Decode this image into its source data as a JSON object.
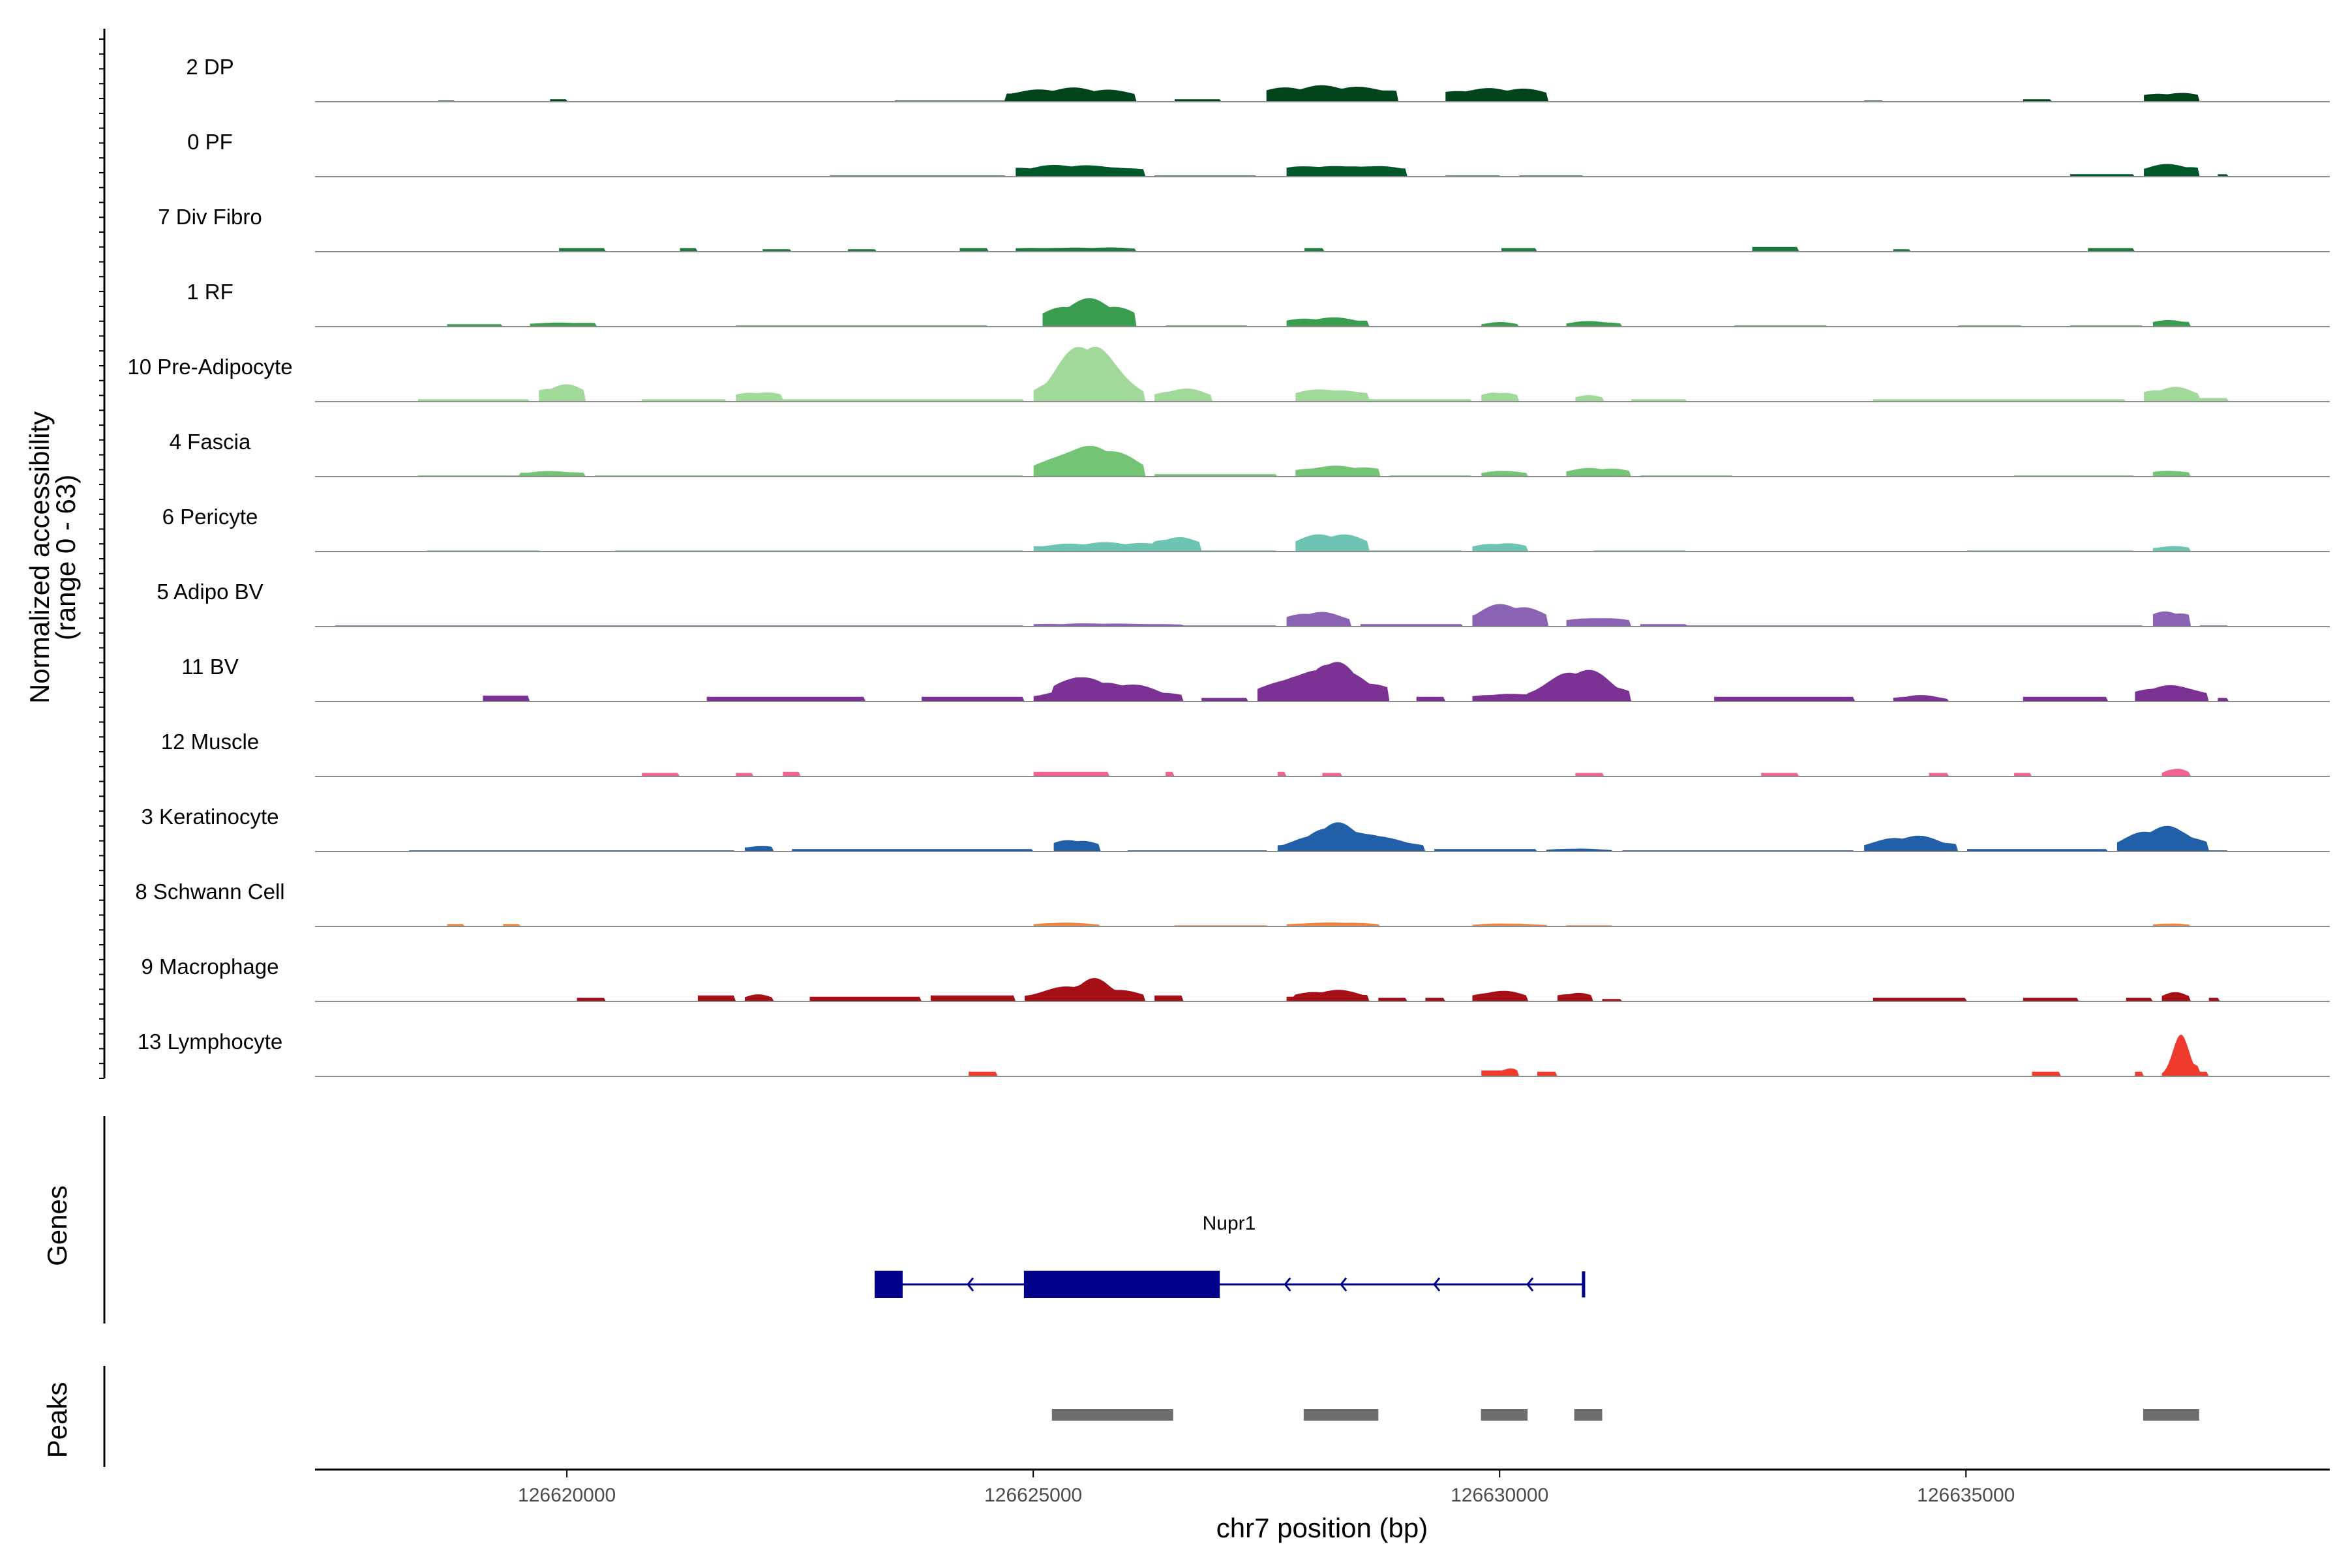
{
  "chart_data": {
    "type": "area",
    "chromosome": "chr7",
    "region": [
      126617300,
      126638900
    ],
    "xlabel": "chr7 position (bp)",
    "x_ticks": [
      126620000,
      126625000,
      126630000,
      126635000
    ],
    "x_tick_labels": [
      "126620000",
      "126625000",
      "126630000",
      "126635000"
    ],
    "ylabel": "Normalized accessibility",
    "ylabel_line2": "(range 0 - 63)",
    "y_range": [
      0,
      63
    ],
    "series": [
      {
        "name": "2 DP",
        "color": "#00441b",
        "peaks": [
          [
            126624700,
            126626100,
            12,
            800
          ],
          [
            126627500,
            126628900,
            14,
            1000
          ],
          [
            126629400,
            126630500,
            12,
            800
          ],
          [
            126636900,
            126637500,
            8,
            400
          ]
        ],
        "noise": [
          [
            126618600,
            126618800,
            1
          ],
          [
            126619800,
            126620000,
            2
          ],
          [
            126623500,
            126624700,
            1
          ],
          [
            126626500,
            126627000,
            2
          ],
          [
            126633900,
            126634100,
            1
          ],
          [
            126635600,
            126635900,
            2
          ]
        ]
      },
      {
        "name": "0 PF",
        "color": "#00592a",
        "peaks": [
          [
            126624800,
            126626200,
            11,
            800
          ],
          [
            126627700,
            126629000,
            11,
            900
          ],
          [
            126636900,
            126637500,
            11,
            400
          ]
        ],
        "noise": [
          [
            126622800,
            126624700,
            1
          ],
          [
            126626300,
            126627400,
            1
          ],
          [
            126629400,
            126630000,
            1
          ],
          [
            126630200,
            126630900,
            1
          ],
          [
            126636100,
            126636800,
            2
          ],
          [
            126637700,
            126637800,
            2
          ]
        ]
      },
      {
        "name": "7 Div Fibro",
        "color": "#1d7b3e",
        "peaks": [
          [
            126624800,
            126626100,
            4,
            1100
          ]
        ],
        "noise": [
          [
            126619900,
            126620400,
            3
          ],
          [
            126621200,
            126621400,
            3
          ],
          [
            126622100,
            126622400,
            2
          ],
          [
            126623000,
            126623300,
            2
          ],
          [
            126624200,
            126624500,
            3
          ],
          [
            126627900,
            126628100,
            3
          ],
          [
            126630000,
            126630400,
            3
          ],
          [
            126632700,
            126633200,
            4
          ],
          [
            126634200,
            126634400,
            2
          ],
          [
            126636300,
            126636800,
            3
          ]
        ]
      },
      {
        "name": "1 RF",
        "color": "#3a9c4e",
        "peaks": [
          [
            126625100,
            126626100,
            24,
            420
          ],
          [
            126627700,
            126628600,
            8,
            500
          ],
          [
            126629800,
            126630200,
            4,
            200
          ],
          [
            126630700,
            126631300,
            5,
            300
          ],
          [
            126637000,
            126637400,
            6,
            250
          ],
          [
            126619600,
            126620300,
            4,
            500
          ]
        ],
        "noise": [
          [
            126618700,
            126619300,
            2
          ],
          [
            126621800,
            126624500,
            1
          ],
          [
            126626400,
            126627300,
            1
          ],
          [
            126632500,
            126633500,
            1
          ],
          [
            126634900,
            126635600,
            1
          ],
          [
            126636100,
            126636900,
            1
          ]
        ]
      },
      {
        "name": "10 Pre-Adipocyte",
        "color": "#a1d99b",
        "peaks": [
          [
            126625000,
            126626200,
            56,
            320
          ],
          [
            126626300,
            126626900,
            12,
            300
          ],
          [
            126627800,
            126628600,
            12,
            500
          ],
          [
            126629800,
            126630200,
            9,
            200
          ],
          [
            126630800,
            126631100,
            7,
            150
          ],
          [
            126636900,
            126637500,
            13,
            300
          ],
          [
            126619700,
            126620200,
            15,
            280
          ],
          [
            126621800,
            126622300,
            9,
            280
          ]
        ],
        "noise": [
          [
            126618400,
            126619600,
            2
          ],
          [
            126620800,
            126621700,
            2
          ],
          [
            126622300,
            126624900,
            2
          ],
          [
            126628600,
            126629700,
            2
          ],
          [
            126631400,
            126632000,
            2
          ],
          [
            126634000,
            126636700,
            2
          ],
          [
            126637500,
            126637800,
            3
          ]
        ]
      },
      {
        "name": "4 Fascia",
        "color": "#74c476",
        "peaks": [
          [
            126625000,
            126626200,
            30,
            420
          ],
          [
            126627800,
            126628700,
            10,
            500
          ],
          [
            126629800,
            126630300,
            6,
            250
          ],
          [
            126630700,
            126631400,
            8,
            350
          ],
          [
            126637000,
            126637400,
            6,
            250
          ],
          [
            126619500,
            126620200,
            5,
            450
          ]
        ],
        "noise": [
          [
            126618400,
            126619500,
            1
          ],
          [
            126620300,
            126624900,
            1
          ],
          [
            126626300,
            126627600,
            2
          ],
          [
            126628800,
            126629700,
            1
          ],
          [
            126631500,
            126632500,
            1
          ],
          [
            126635500,
            126636800,
            1
          ]
        ]
      },
      {
        "name": "6 Pericyte",
        "color": "#6dc4b0",
        "peaks": [
          [
            126625000,
            126626700,
            8,
            900
          ],
          [
            126626300,
            126626800,
            14,
            280
          ],
          [
            126627800,
            126628600,
            16,
            400
          ],
          [
            126629700,
            126630300,
            8,
            300
          ],
          [
            126637000,
            126637400,
            5,
            250
          ]
        ],
        "noise": [
          [
            126618500,
            126619700,
            1
          ],
          [
            126620500,
            126624900,
            1
          ],
          [
            126626800,
            126627600,
            1
          ],
          [
            126628600,
            126629600,
            1
          ],
          [
            126631000,
            126632000,
            1
          ],
          [
            126635000,
            126636800,
            1
          ]
        ]
      },
      {
        "name": "5 Adipo BV",
        "color": "#8a63b5",
        "peaks": [
          [
            126627700,
            126628400,
            14,
            320
          ],
          [
            126629700,
            126630500,
            20,
            380
          ],
          [
            126630700,
            126631400,
            9,
            400
          ],
          [
            126637000,
            126637400,
            14,
            250
          ],
          [
            126625000,
            126626600,
            3,
            900
          ]
        ],
        "noise": [
          [
            126617500,
            126624900,
            1
          ],
          [
            126626600,
            126627600,
            1
          ],
          [
            126628500,
            126629600,
            2
          ],
          [
            126631500,
            126632000,
            2
          ],
          [
            126632000,
            126636900,
            1
          ],
          [
            126637500,
            126637800,
            1
          ]
        ]
      },
      {
        "name": "11 BV",
        "color": "#7b3294",
        "peaks": [
          [
            126625000,
            126626600,
            18,
            520
          ],
          [
            126625200,
            126625800,
            26,
            280
          ],
          [
            126627400,
            126628800,
            32,
            500
          ],
          [
            126627900,
            126628500,
            40,
            250
          ],
          [
            126630300,
            126631400,
            30,
            350
          ],
          [
            126629700,
            126630600,
            8,
            450
          ],
          [
            126636800,
            126637600,
            16,
            350
          ],
          [
            126634200,
            126634800,
            6,
            250
          ]
        ],
        "noise": [
          [
            126619100,
            126619600,
            5
          ],
          [
            126621500,
            126623200,
            4
          ],
          [
            126623800,
            126624900,
            4
          ],
          [
            126626800,
            126627300,
            3
          ],
          [
            126629100,
            126629400,
            4
          ],
          [
            126632300,
            126633800,
            4
          ],
          [
            126635600,
            126636500,
            4
          ],
          [
            126637700,
            126637800,
            3
          ]
        ]
      },
      {
        "name": "12 Muscle",
        "color": "#f0648f",
        "peaks": [
          [
            126637100,
            126637400,
            8,
            120
          ]
        ],
        "noise": [
          [
            126620800,
            126621200,
            3
          ],
          [
            126621800,
            126622000,
            3
          ],
          [
            126622300,
            126622500,
            4
          ],
          [
            126625000,
            126625800,
            4
          ],
          [
            126626400,
            126626500,
            4
          ],
          [
            126627600,
            126627700,
            4
          ],
          [
            126628100,
            126628300,
            3
          ],
          [
            126630800,
            126631100,
            3
          ],
          [
            126632800,
            126633200,
            3
          ],
          [
            126634600,
            126634800,
            3
          ],
          [
            126635500,
            126635700,
            3
          ]
        ]
      },
      {
        "name": "3 Keratinocyte",
        "color": "#2160a8",
        "peaks": [
          [
            126625200,
            126625700,
            11,
            250
          ],
          [
            126627600,
            126629200,
            20,
            500
          ],
          [
            126627900,
            126628600,
            28,
            250
          ],
          [
            126633900,
            126634900,
            14,
            400
          ],
          [
            126636600,
            126637600,
            22,
            350
          ],
          [
            126637100,
            126637500,
            18,
            200
          ],
          [
            126621900,
            126622200,
            5,
            250
          ],
          [
            126630500,
            126631200,
            3,
            300
          ]
        ],
        "noise": [
          [
            126618300,
            126621800,
            1
          ],
          [
            126622400,
            126625000,
            2
          ],
          [
            126626000,
            126627500,
            1
          ],
          [
            126629300,
            126630400,
            2
          ],
          [
            126631300,
            126633800,
            1
          ],
          [
            126635000,
            126636500,
            2
          ],
          [
            126637600,
            126637800,
            1
          ]
        ]
      },
      {
        "name": "8 Schwann Cell",
        "color": "#f0843c",
        "peaks": [
          [
            126625000,
            126625700,
            4,
            300
          ],
          [
            126627700,
            126628700,
            4,
            450
          ],
          [
            126629700,
            126630500,
            3,
            350
          ],
          [
            126637000,
            126637400,
            3,
            200
          ]
        ],
        "noise": [
          [
            126618700,
            126618900,
            2
          ],
          [
            126619300,
            126619500,
            2
          ],
          [
            126626500,
            126627500,
            1
          ],
          [
            126630700,
            126631200,
            1
          ]
        ]
      },
      {
        "name": "9 Macrophage",
        "color": "#a50f15",
        "peaks": [
          [
            126624900,
            126626200,
            16,
            450
          ],
          [
            126625400,
            126625900,
            20,
            220
          ],
          [
            126627800,
            126628600,
            10,
            400
          ],
          [
            126629700,
            126630300,
            10,
            300
          ],
          [
            126630600,
            126631000,
            8,
            200
          ],
          [
            126637100,
            126637400,
            9,
            150
          ],
          [
            126621900,
            126622200,
            7,
            150
          ]
        ],
        "noise": [
          [
            126620100,
            126620400,
            3
          ],
          [
            126621400,
            126621800,
            5
          ],
          [
            126622600,
            126623800,
            4
          ],
          [
            126623900,
            126624800,
            5
          ],
          [
            126626300,
            126626600,
            5
          ],
          [
            126627700,
            126627800,
            4
          ],
          [
            126628700,
            126629000,
            3
          ],
          [
            126629200,
            126629400,
            3
          ],
          [
            126631100,
            126631300,
            2
          ],
          [
            126634000,
            126635000,
            3
          ],
          [
            126635600,
            126636200,
            3
          ],
          [
            126636700,
            126637000,
            3
          ],
          [
            126637600,
            126637700,
            3
          ]
        ]
      },
      {
        "name": "13 Lymphocyte",
        "color": "#ef3b2c",
        "peaks": [
          [
            126637100,
            126637500,
            36,
            90
          ],
          [
            126637200,
            126637500,
            12,
            200
          ],
          [
            126630000,
            126630200,
            8,
            100
          ]
        ],
        "noise": [
          [
            126624300,
            126624600,
            4
          ],
          [
            126629800,
            126630100,
            5
          ],
          [
            126630400,
            126630600,
            4
          ],
          [
            126635700,
            126636000,
            4
          ],
          [
            126636800,
            126636900,
            4
          ],
          [
            126637500,
            126637600,
            4
          ]
        ]
      }
    ],
    "genes_track_label": "Genes",
    "gene": {
      "name": "Nupr1",
      "color": "#00008b",
      "strand": "-",
      "start": 126623300,
      "end": 126630900,
      "exons": [
        [
          126623300,
          126623600
        ],
        [
          126624900,
          126627000
        ]
      ],
      "arrows": [
        126624300,
        126627700,
        126628300,
        126629300,
        126630300
      ]
    },
    "peaks_track_label": "Peaks",
    "peaks_track_color": "#6e6e6e",
    "peak_regions": [
      [
        126625200,
        126626500
      ],
      [
        126627900,
        126628700
      ],
      [
        126629800,
        126630300
      ],
      [
        126630800,
        126631100
      ],
      [
        126636900,
        126637500
      ]
    ]
  }
}
